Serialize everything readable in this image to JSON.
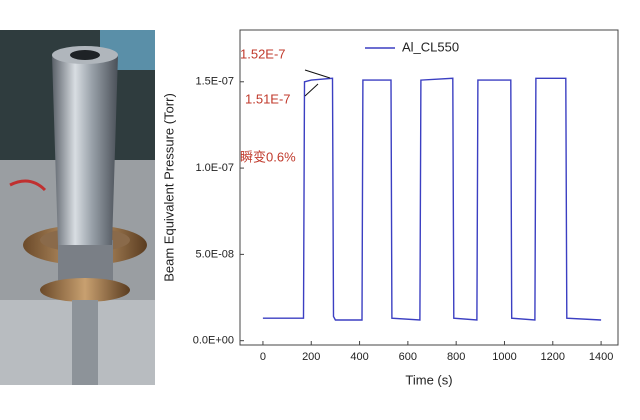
{
  "chart_data": {
    "type": "line",
    "x": [
      0,
      168,
      172,
      200,
      288,
      292,
      300,
      410,
      414,
      530,
      534,
      650,
      654,
      786,
      790,
      886,
      890,
      1026,
      1030,
      1126,
      1130,
      1254,
      1258,
      1400
    ],
    "series": [
      {
        "name": "Al_CL550",
        "color": "#3b3fc2",
        "values": [
          1.3e-08,
          1.3e-08,
          1.5e-07,
          1.51e-07,
          1.52e-07,
          1.4e-08,
          1.2e-08,
          1.2e-08,
          1.51e-07,
          1.51e-07,
          1.3e-08,
          1.2e-08,
          1.51e-07,
          1.52e-07,
          1.3e-08,
          1.2e-08,
          1.51e-07,
          1.51e-07,
          1.3e-08,
          1.2e-08,
          1.52e-07,
          1.52e-07,
          1.3e-08,
          1.2e-08
        ]
      }
    ],
    "xlabel": "Time (s)",
    "ylabel": "Beam Equivalent Pressure (Torr)",
    "xlim": [
      -95,
      1470
    ],
    "ylim": [
      -2.5e-09,
      1.8e-07
    ],
    "xticks": [
      0,
      200,
      400,
      600,
      800,
      1000,
      1200,
      1400
    ],
    "yticks": [
      {
        "value": 0,
        "label": "0.0E+00"
      },
      {
        "value": 5e-08,
        "label": "5.0E-08"
      },
      {
        "value": 1e-07,
        "label": "1.0E-07"
      },
      {
        "value": 1.5e-07,
        "label": "1.5E-07"
      }
    ],
    "annotations": [
      "1.52E-7",
      "1.51E-7",
      "瞬变0.6%"
    ]
  }
}
